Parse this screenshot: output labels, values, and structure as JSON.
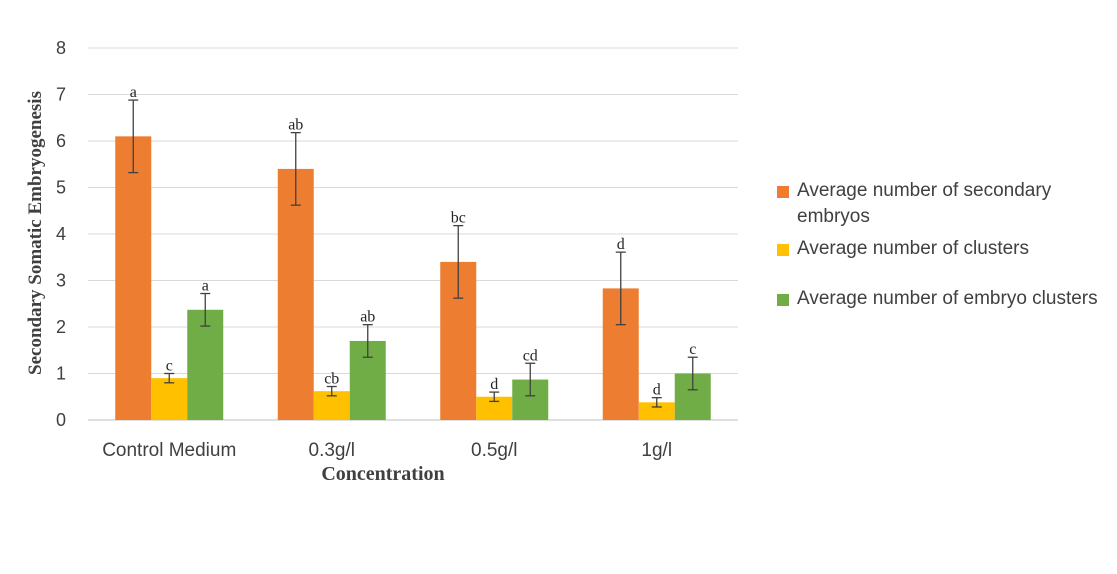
{
  "chart_data": {
    "type": "bar",
    "title": "",
    "xlabel": "Concentration",
    "ylabel": "Secondary Somatic Embryogenesis",
    "ylim": [
      0,
      8
    ],
    "yticks": [
      "0",
      "1",
      "2",
      "3",
      "4",
      "5",
      "6",
      "7",
      "8"
    ],
    "categories": [
      "Control Medium",
      "0.3g/l",
      "0.5g/l",
      "1g/l"
    ],
    "grid": true,
    "legend_position": "right",
    "series": [
      {
        "name": "Average number of secondary embryos",
        "color": "#ED7D31",
        "values": [
          6.1,
          5.4,
          3.4,
          2.83
        ],
        "errors": [
          0.78,
          0.78,
          0.78,
          0.78
        ],
        "letters": [
          "a",
          "ab",
          "bc",
          "d"
        ]
      },
      {
        "name": "Average number of clusters",
        "color": "#FFC000",
        "values": [
          0.9,
          0.62,
          0.5,
          0.38
        ],
        "errors": [
          0.1,
          0.1,
          0.1,
          0.1
        ],
        "letters": [
          "c",
          "cb",
          "d",
          "d"
        ]
      },
      {
        "name": "Average number of embryo clusters",
        "color": "#70AD47",
        "values": [
          2.37,
          1.7,
          0.87,
          1.0
        ],
        "errors": [
          0.35,
          0.35,
          0.35,
          0.35
        ],
        "letters": [
          "a",
          "ab",
          "cd",
          "c"
        ]
      }
    ]
  },
  "legend": {
    "items": [
      {
        "label": "Average number of secondary embryos",
        "color": "#ED7D31"
      },
      {
        "label": "Average number of clusters",
        "color": "#FFC000"
      },
      {
        "label": "Average number of embryo clusters",
        "color": "#70AD47"
      }
    ]
  }
}
